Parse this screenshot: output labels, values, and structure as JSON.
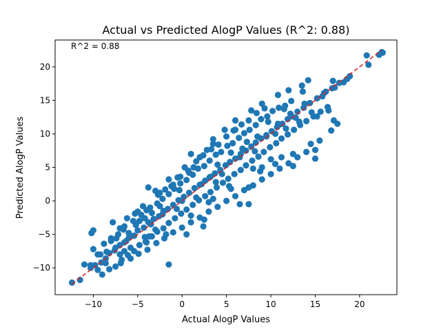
{
  "chart_data": {
    "type": "scatter",
    "title": "Actual vs Predicted AlogP Values (R^2: 0.88)",
    "annotation": "R^2 = 0.88",
    "xlabel": "Actual AlogP Values",
    "ylabel": "Predicted AlogP Values",
    "xlim": [
      -14.3,
      24.2
    ],
    "ylim": [
      -14.0,
      24.0
    ],
    "xticks": [
      -10,
      -5,
      0,
      5,
      10,
      15,
      20
    ],
    "yticks": [
      -10,
      -5,
      0,
      5,
      10,
      15,
      20
    ],
    "xtick_labels": [
      "−10",
      "−5",
      "0",
      "5",
      "10",
      "15",
      "20"
    ],
    "ytick_labels": [
      "−10",
      "−5",
      "0",
      "5",
      "10",
      "15",
      "20"
    ],
    "grid": false,
    "colors": {
      "points": "#1f77b4",
      "reference_line": "#d62728"
    },
    "reference_line": {
      "name": "y = x",
      "x": [
        -12.4,
        22.5
      ],
      "y": [
        -12.4,
        22.5
      ],
      "style": "dashed"
    },
    "series": [
      {
        "points": [
          [
            -12.4,
            -12.2
          ],
          [
            -11.5,
            -11.8
          ],
          [
            -10.3,
            -10.0
          ],
          [
            -9.8,
            -9.6
          ],
          [
            -9.1,
            -9.2
          ],
          [
            -8.6,
            -8.6
          ],
          [
            -8.2,
            -7.8
          ],
          [
            -7.6,
            -7.4
          ],
          [
            -7.0,
            -6.6
          ],
          [
            -6.5,
            -6.2
          ],
          [
            -6.0,
            -5.5
          ],
          [
            -5.4,
            -5.2
          ],
          [
            -5.0,
            -4.4
          ],
          [
            -4.3,
            -4.0
          ],
          [
            -3.8,
            -3.2
          ],
          [
            -3.2,
            -2.7
          ],
          [
            -2.6,
            -2.3
          ],
          [
            -2.1,
            -1.5
          ],
          [
            -1.6,
            -1.2
          ],
          [
            -1.0,
            -0.6
          ],
          [
            -0.4,
            0.1
          ],
          [
            0.2,
            0.6
          ],
          [
            0.8,
            1.2
          ],
          [
            1.4,
            1.9
          ],
          [
            2.0,
            2.4
          ],
          [
            2.6,
            3.0
          ],
          [
            3.1,
            3.5
          ],
          [
            3.7,
            4.1
          ],
          [
            4.3,
            4.6
          ],
          [
            4.9,
            5.3
          ],
          [
            5.4,
            5.8
          ],
          [
            6.0,
            6.3
          ],
          [
            6.6,
            7.0
          ],
          [
            7.2,
            7.5
          ],
          [
            7.8,
            8.1
          ],
          [
            8.3,
            8.7
          ],
          [
            8.9,
            9.3
          ],
          [
            9.5,
            9.8
          ],
          [
            10.1,
            10.4
          ],
          [
            10.7,
            11.0
          ],
          [
            11.3,
            11.5
          ],
          [
            11.9,
            12.2
          ],
          [
            12.4,
            12.6
          ],
          [
            13.0,
            13.3
          ],
          [
            13.7,
            13.9
          ],
          [
            14.4,
            14.6
          ],
          [
            15.2,
            15.3
          ],
          [
            16.0,
            16.1
          ],
          [
            16.9,
            16.8
          ],
          [
            17.7,
            17.6
          ],
          [
            18.6,
            18.2
          ],
          [
            -10.0,
            -7.2
          ],
          [
            -9.5,
            -8.0
          ],
          [
            -8.8,
            -6.4
          ],
          [
            -8.0,
            -6.0
          ],
          [
            -7.4,
            -5.6
          ],
          [
            -6.6,
            -4.3
          ],
          [
            -6.0,
            -4.8
          ],
          [
            -5.2,
            -3.6
          ],
          [
            -4.6,
            -2.1
          ],
          [
            -4.0,
            -1.4
          ],
          [
            -3.4,
            -1.8
          ],
          [
            -2.8,
            -0.4
          ],
          [
            -2.2,
            0.3
          ],
          [
            -1.5,
            1.0
          ],
          [
            -0.9,
            1.8
          ],
          [
            -0.2,
            2.6
          ],
          [
            0.5,
            3.1
          ],
          [
            1.2,
            3.9
          ],
          [
            1.8,
            4.8
          ],
          [
            2.5,
            5.2
          ],
          [
            3.1,
            6.0
          ],
          [
            3.8,
            6.9
          ],
          [
            4.4,
            7.3
          ],
          [
            5.1,
            8.2
          ],
          [
            5.7,
            8.6
          ],
          [
            6.4,
            9.4
          ],
          [
            7.0,
            10.1
          ],
          [
            7.6,
            10.6
          ],
          [
            8.3,
            11.3
          ],
          [
            8.9,
            12.2
          ],
          [
            9.6,
            12.6
          ],
          [
            10.2,
            13.4
          ],
          [
            10.9,
            13.9
          ],
          [
            11.6,
            14.2
          ],
          [
            12.3,
            14.9
          ],
          [
            -9.0,
            -11.0
          ],
          [
            -8.2,
            -10.2
          ],
          [
            -7.5,
            -9.8
          ],
          [
            -6.8,
            -8.8
          ],
          [
            -6.1,
            -8.1
          ],
          [
            -5.4,
            -7.5
          ],
          [
            -4.8,
            -6.6
          ],
          [
            -4.1,
            -6.1
          ],
          [
            -3.4,
            -5.3
          ],
          [
            -2.8,
            -4.6
          ],
          [
            -2.1,
            -4.1
          ],
          [
            -1.5,
            -3.3
          ],
          [
            -0.8,
            -2.6
          ],
          [
            -0.1,
            -1.9
          ],
          [
            0.5,
            -1.3
          ],
          [
            1.2,
            -0.6
          ],
          [
            1.9,
            0.1
          ],
          [
            2.6,
            0.7
          ],
          [
            3.2,
            1.3
          ],
          [
            3.9,
            2.0
          ],
          [
            4.6,
            2.7
          ],
          [
            5.2,
            3.3
          ],
          [
            5.9,
            4.0
          ],
          [
            6.6,
            4.6
          ],
          [
            7.2,
            5.3
          ],
          [
            7.9,
            6.0
          ],
          [
            8.6,
            6.6
          ],
          [
            9.2,
            7.3
          ],
          [
            9.9,
            8.0
          ],
          [
            10.6,
            8.6
          ],
          [
            11.2,
            9.3
          ],
          [
            11.9,
            9.9
          ],
          [
            12.6,
            10.6
          ],
          [
            13.3,
            11.3
          ],
          [
            14.0,
            11.9
          ],
          [
            14.8,
            12.6
          ],
          [
            15.6,
            13.3
          ],
          [
            16.4,
            14.0
          ],
          [
            -7.8,
            -3.2
          ],
          [
            -7.0,
            -4.1
          ],
          [
            -6.2,
            -2.6
          ],
          [
            -5.3,
            -1.9
          ],
          [
            -4.4,
            -0.8
          ],
          [
            -3.6,
            -1.0
          ],
          [
            -2.7,
            0.9
          ],
          [
            -1.9,
            1.7
          ],
          [
            -1.0,
            2.4
          ],
          [
            -0.2,
            3.6
          ],
          [
            0.7,
            4.5
          ],
          [
            1.6,
            5.9
          ],
          [
            2.4,
            6.8
          ],
          [
            3.3,
            7.7
          ],
          [
            4.1,
            8.4
          ],
          [
            5.0,
            9.6
          ],
          [
            5.8,
            10.5
          ],
          [
            6.7,
            11.4
          ],
          [
            7.5,
            12.0
          ],
          [
            8.4,
            13.1
          ],
          [
            9.3,
            13.8
          ],
          [
            -6.9,
            -9.3
          ],
          [
            -5.8,
            -8.6
          ],
          [
            -4.9,
            -7.9
          ],
          [
            -3.9,
            -7.3
          ],
          [
            -2.9,
            -6.3
          ],
          [
            -2.0,
            -5.6
          ],
          [
            -1.0,
            -4.7
          ],
          [
            0.0,
            -4.0
          ],
          [
            1.0,
            -3.2
          ],
          [
            2.0,
            -2.5
          ],
          [
            3.0,
            -1.6
          ],
          [
            4.0,
            -0.9
          ],
          [
            5.0,
            0.0
          ],
          [
            6.0,
            0.7
          ],
          [
            7.0,
            1.6
          ],
          [
            8.0,
            2.3
          ],
          [
            9.0,
            3.2
          ],
          [
            10.0,
            4.0
          ],
          [
            11.0,
            4.8
          ],
          [
            12.0,
            5.6
          ],
          [
            13.0,
            6.5
          ],
          [
            14.0,
            7.3
          ],
          [
            -3.0,
            1.5
          ],
          [
            -1.5,
            3.2
          ],
          [
            0.3,
            5.0
          ],
          [
            2.0,
            6.5
          ],
          [
            3.5,
            8.5
          ],
          [
            6.0,
            12.0
          ],
          [
            7.8,
            13.5
          ],
          [
            9.0,
            14.5
          ],
          [
            10.8,
            15.8
          ],
          [
            12.0,
            16.5
          ],
          [
            13.5,
            17.2
          ],
          [
            14.2,
            18.0
          ],
          [
            1.0,
            -2.2
          ],
          [
            3.5,
            0.3
          ],
          [
            5.5,
            1.8
          ],
          [
            7.5,
            2.0
          ],
          [
            8.8,
            4.4
          ],
          [
            10.5,
            5.5
          ],
          [
            12.5,
            7.0
          ],
          [
            14.5,
            8.5
          ],
          [
            15.5,
            9.0
          ],
          [
            16.8,
            10.5
          ],
          [
            17.5,
            11.5
          ],
          [
            -10.2,
            -4.8
          ],
          [
            -10.0,
            -4.4
          ],
          [
            -6.5,
            -3.8
          ],
          [
            -5.5,
            -3.0
          ],
          [
            -3.8,
            2.0
          ],
          [
            -2.5,
            1.2
          ],
          [
            -0.5,
            3.5
          ],
          [
            1.3,
            5.0
          ],
          [
            1.0,
            7.0
          ],
          [
            4.8,
            10.6
          ],
          [
            3.5,
            9.2
          ],
          [
            6.0,
            10.6
          ],
          [
            11.5,
            13.7
          ],
          [
            13.6,
            16.3
          ],
          [
            17.0,
            17.9
          ],
          [
            15.2,
            12.6
          ],
          [
            17.1,
            12.0
          ],
          [
            16.5,
            13.5
          ],
          [
            15.0,
            6.3
          ],
          [
            15.0,
            7.6
          ],
          [
            11.2,
            6.5
          ],
          [
            9.0,
            5.0
          ],
          [
            10.0,
            6.2
          ],
          [
            12.5,
            5.2
          ],
          [
            7.5,
            -0.5
          ],
          [
            6.5,
            -0.5
          ],
          [
            3.0,
            -0.2
          ],
          [
            2.4,
            -3.8
          ],
          [
            2.5,
            -2.8
          ],
          [
            0.5,
            -5.0
          ],
          [
            -1.8,
            -5.0
          ],
          [
            -3.7,
            -5.3
          ],
          [
            -4.2,
            -5.4
          ],
          [
            -3.0,
            -4.3
          ],
          [
            -1.5,
            -9.5
          ],
          [
            -4.0,
            -6.2
          ],
          [
            -6.5,
            -7.5
          ],
          [
            -7.5,
            -7.0
          ],
          [
            -10.3,
            -9.6
          ],
          [
            -9.5,
            -10.3
          ],
          [
            -8.6,
            -9.3
          ],
          [
            -11.0,
            -9.5
          ],
          [
            -9.2,
            -8.0
          ],
          [
            -8.5,
            -7.6
          ],
          [
            -7.0,
            -8.0
          ],
          [
            -5.8,
            -7.0
          ],
          [
            -8.0,
            -5.6
          ],
          [
            -3.5,
            -3.5
          ],
          [
            -2.2,
            -2.0
          ],
          [
            0.0,
            0.0
          ],
          [
            2.2,
            2.5
          ],
          [
            4.5,
            4.0
          ],
          [
            6.8,
            7.8
          ],
          [
            8.5,
            9.6
          ],
          [
            10.5,
            10.0
          ],
          [
            12.8,
            12.4
          ],
          [
            13.8,
            14.5
          ],
          [
            15.8,
            15.6
          ],
          [
            16.2,
            16.3
          ],
          [
            17.2,
            16.9
          ],
          [
            18.2,
            17.7
          ],
          [
            18.9,
            18.6
          ],
          [
            22.2,
            21.8
          ],
          [
            22.6,
            22.1
          ],
          [
            22.5,
            22.2
          ],
          [
            20.8,
            21.7
          ],
          [
            21.0,
            20.3
          ],
          [
            -0.3,
            1.6
          ],
          [
            3.2,
            3.6
          ],
          [
            6.5,
            6.5
          ],
          [
            9.5,
            9.6
          ],
          [
            11.0,
            11.4
          ],
          [
            -5.0,
            -1.6
          ],
          [
            -4.2,
            -2.6
          ],
          [
            -0.6,
            -1.2
          ],
          [
            1.6,
            0.5
          ],
          [
            4.0,
            5.4
          ],
          [
            8.2,
            7.4
          ],
          [
            10.8,
            11.5
          ],
          [
            12.2,
            13.0
          ],
          [
            -7.2,
            -5.0
          ],
          [
            -1.2,
            2.2
          ],
          [
            3.8,
            2.8
          ],
          [
            5.5,
            7.2
          ],
          [
            7.3,
            8.8
          ],
          [
            9.7,
            11.8
          ],
          [
            11.7,
            10.8
          ],
          [
            13.2,
            11.8
          ],
          [
            14.6,
            13.2
          ],
          [
            2.8,
            7.6
          ],
          [
            0.8,
            4.2
          ],
          [
            -2.5,
            -0.8
          ],
          [
            -4.8,
            -3.0
          ],
          [
            -6.3,
            -6.0
          ],
          [
            5.3,
            2.2
          ],
          [
            8.0,
            4.8
          ]
        ]
      }
    ]
  }
}
